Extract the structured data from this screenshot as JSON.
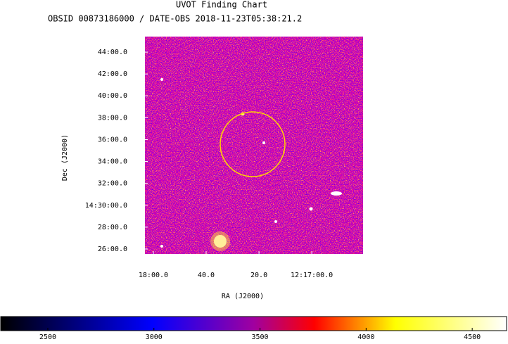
{
  "chart_data": {
    "type": "image",
    "title": "UVOT Finding Chart",
    "subtitle": "OBSID 00873186000 / DATE-OBS 2018-11-23T05:38:21.2",
    "xlabel": "RA (J2000)",
    "ylabel": "Dec (J2000)",
    "xlim": [
      184.5133,
      184.169
    ],
    "xticks": [
      {
        "value": 184.5,
        "label": "18:00.0"
      },
      {
        "value": 184.4167,
        "label": "40.0"
      },
      {
        "value": 184.3333,
        "label": "20.0"
      },
      {
        "value": 184.25,
        "label": "12:17:00.0"
      }
    ],
    "ylim": [
      14.4258,
      14.757
    ],
    "yticks": [
      {
        "value": 14.4333,
        "label": "26:00.0"
      },
      {
        "value": 14.4667,
        "label": "28:00.0"
      },
      {
        "value": 14.5,
        "label": "14:30:00.0"
      },
      {
        "value": 14.5333,
        "label": "32:00.0"
      },
      {
        "value": 14.5667,
        "label": "34:00.0"
      },
      {
        "value": 14.6,
        "label": "36:00.0"
      },
      {
        "value": 14.6333,
        "label": "38:00.0"
      },
      {
        "value": 14.6667,
        "label": "40:00.0"
      },
      {
        "value": 14.7,
        "label": "42:00.0"
      },
      {
        "value": 14.7333,
        "label": "44:00.0"
      }
    ],
    "clim": [
      2278,
      4662
    ],
    "cticks": [
      2500,
      3000,
      3500,
      4000,
      4500
    ]
  }
}
